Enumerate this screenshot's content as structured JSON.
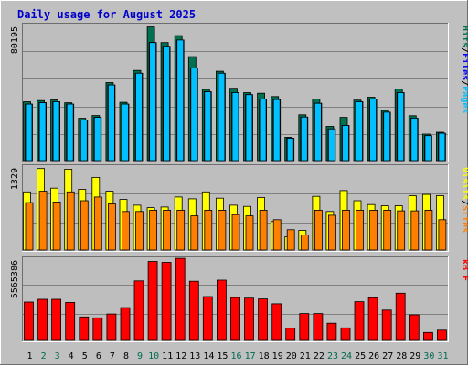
{
  "title": "Daily usage for August 2025",
  "colors": {
    "page_bg": "#C0C0C0",
    "frame_light": "#FFFFFF",
    "frame_dark": "#6E6E6E",
    "panel_bg": "#BEBEBE",
    "grid": "#808080",
    "title_text": "#0000CC",
    "hits": "#007050",
    "files": "#00C0FF",
    "pages": "#00C0FF",
    "visits": "#FFFF00",
    "sites": "#FF8000",
    "kbytes": "#FF0000",
    "weekday_label": "#000000",
    "weekend_label": "#006A4E",
    "axis_text": "#000000"
  },
  "chart_data": [
    {
      "type": "bar",
      "panel": "pages-files-hits",
      "max_label": "80195",
      "ylim": [
        0,
        80195
      ],
      "legend": [
        {
          "name": "Pages",
          "color": "#00C0FF"
        },
        {
          "name": "/",
          "color": "#000000"
        },
        {
          "name": "Files",
          "color": "#0000FF"
        },
        {
          "name": "/",
          "color": "#000000"
        },
        {
          "name": "Hits",
          "color": "#007050"
        }
      ],
      "series": [
        {
          "name": "Hits",
          "values": [
            34700,
            35400,
            35800,
            34100,
            25000,
            26600,
            46000,
            34400,
            53200,
            78800,
            69600,
            73700,
            61300,
            42000,
            52700,
            42700,
            40100,
            39700,
            37800,
            13800,
            27000,
            36400,
            20200,
            25500,
            35700,
            37400,
            29600,
            42200,
            26500,
            15600,
            16700
          ]
        },
        {
          "name": "Files",
          "values": [
            33300,
            34100,
            34700,
            33300,
            23900,
            25500,
            44600,
            33300,
            51500,
            69600,
            67400,
            71100,
            54700,
            40600,
            51500,
            40100,
            38900,
            36300,
            36000,
            13200,
            25700,
            33800,
            18700,
            20700,
            34700,
            36300,
            28600,
            40100,
            25100,
            14700,
            16100
          ]
        },
        {
          "name": "Pages",
          "values": [
            33300,
            34100,
            34700,
            33300,
            23900,
            25500,
            44600,
            33300,
            51500,
            69600,
            67400,
            71100,
            54700,
            40600,
            51500,
            40100,
            38900,
            36300,
            36000,
            13200,
            25700,
            33800,
            18700,
            20700,
            34700,
            36300,
            28600,
            40100,
            25100,
            14700,
            16100
          ]
        }
      ]
    },
    {
      "type": "bar",
      "panel": "sites-visits",
      "max_label": "1329",
      "ylim": [
        0,
        1329
      ],
      "legend": [
        {
          "name": "Sites",
          "color": "#FF8000"
        },
        {
          "name": "/",
          "color": "#000000"
        },
        {
          "name": "Visits",
          "color": "#FFFF00"
        }
      ],
      "series": [
        {
          "name": "Visits",
          "values": [
            920,
            1290,
            980,
            1280,
            960,
            1150,
            930,
            800,
            710,
            670,
            680,
            840,
            810,
            920,
            820,
            710,
            690,
            830,
            450,
            210,
            310,
            850,
            610,
            940,
            780,
            720,
            700,
            700,
            860,
            880,
            860
          ]
        },
        {
          "name": "Sites",
          "values": [
            750,
            930,
            760,
            920,
            780,
            840,
            730,
            610,
            610,
            630,
            630,
            630,
            540,
            630,
            630,
            560,
            540,
            630,
            480,
            320,
            240,
            630,
            550,
            630,
            630,
            630,
            630,
            620,
            620,
            630,
            480
          ]
        }
      ]
    },
    {
      "type": "bar",
      "panel": "kbytes",
      "max_label": "5565386",
      "ylim": [
        0,
        5565386
      ],
      "legend": [
        {
          "name": "kB F",
          "color": "#FF0000"
        }
      ],
      "series": [
        {
          "name": "kB F",
          "values": [
            2600000,
            2780000,
            2780000,
            2570000,
            1590000,
            1530000,
            1790000,
            2220000,
            4030000,
            5350000,
            5290000,
            5560000,
            4010000,
            2970000,
            4080000,
            2900000,
            2860000,
            2810000,
            2480000,
            820000,
            1820000,
            1820000,
            1160000,
            850000,
            2620000,
            2890000,
            2050000,
            3200000,
            1730000,
            540000,
            690000
          ]
        }
      ]
    }
  ],
  "days": [
    {
      "label": "1",
      "weekend": false
    },
    {
      "label": "2",
      "weekend": true
    },
    {
      "label": "3",
      "weekend": true
    },
    {
      "label": "4",
      "weekend": false
    },
    {
      "label": "5",
      "weekend": false
    },
    {
      "label": "6",
      "weekend": false
    },
    {
      "label": "7",
      "weekend": false
    },
    {
      "label": "8",
      "weekend": false
    },
    {
      "label": "9",
      "weekend": true
    },
    {
      "label": "10",
      "weekend": true
    },
    {
      "label": "11",
      "weekend": false
    },
    {
      "label": "12",
      "weekend": false
    },
    {
      "label": "13",
      "weekend": false
    },
    {
      "label": "14",
      "weekend": false
    },
    {
      "label": "15",
      "weekend": false
    },
    {
      "label": "16",
      "weekend": true
    },
    {
      "label": "17",
      "weekend": true
    },
    {
      "label": "18",
      "weekend": false
    },
    {
      "label": "19",
      "weekend": false
    },
    {
      "label": "20",
      "weekend": false
    },
    {
      "label": "21",
      "weekend": false
    },
    {
      "label": "22",
      "weekend": false
    },
    {
      "label": "23",
      "weekend": true
    },
    {
      "label": "24",
      "weekend": true
    },
    {
      "label": "25",
      "weekend": false
    },
    {
      "label": "26",
      "weekend": false
    },
    {
      "label": "27",
      "weekend": false
    },
    {
      "label": "28",
      "weekend": false
    },
    {
      "label": "29",
      "weekend": false
    },
    {
      "label": "30",
      "weekend": true
    },
    {
      "label": "31",
      "weekend": true
    }
  ]
}
